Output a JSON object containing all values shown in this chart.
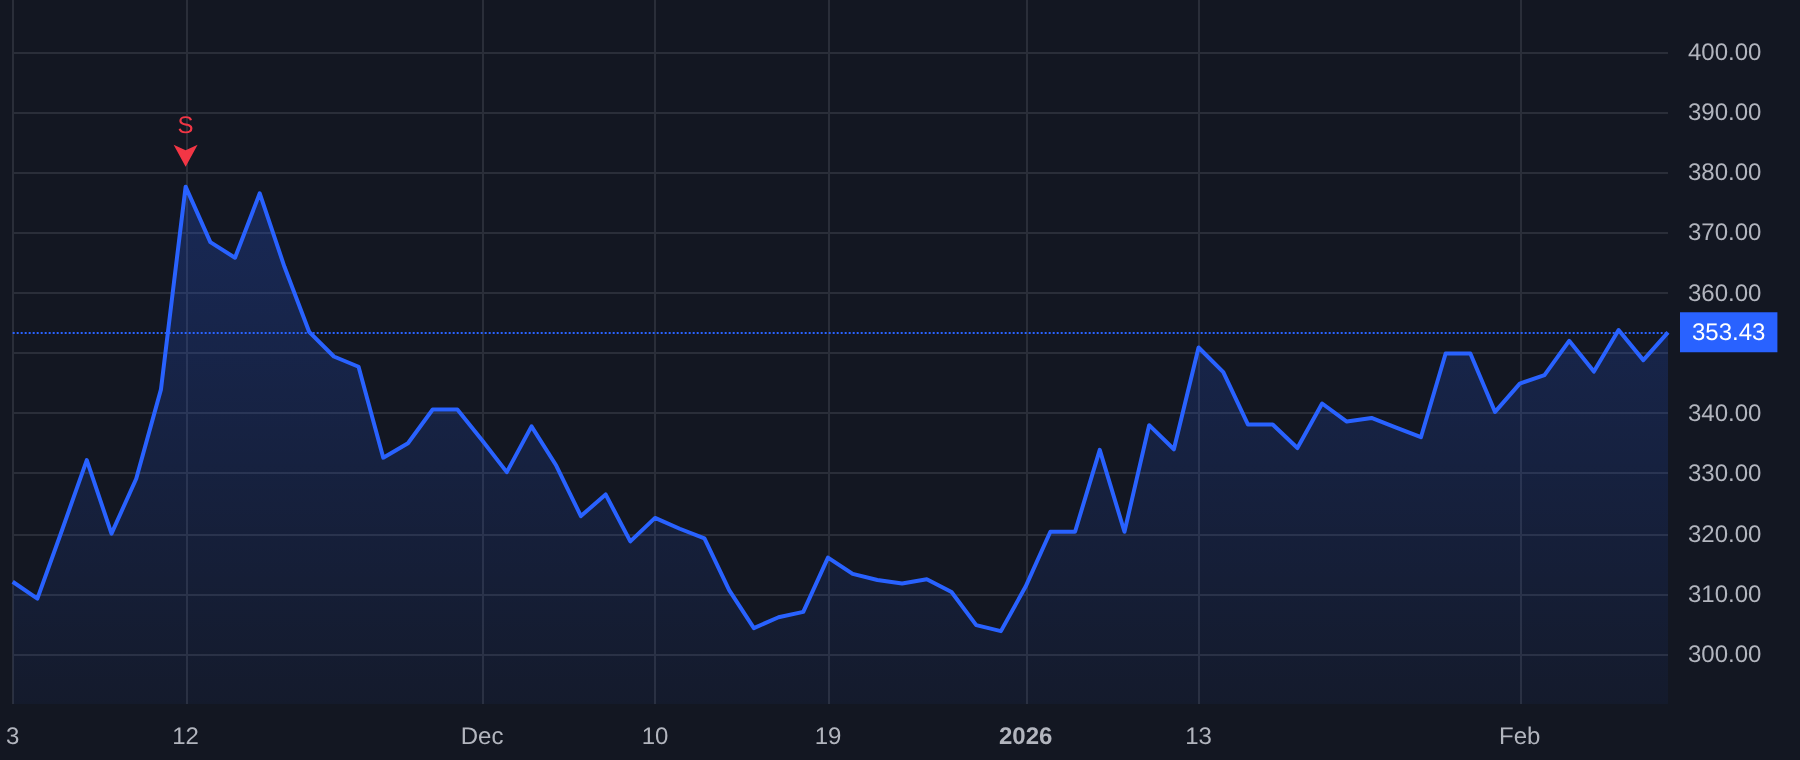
{
  "chart_data": {
    "type": "area",
    "categories": [
      "3",
      null,
      null,
      null,
      null,
      null,
      null,
      "12",
      null,
      null,
      null,
      null,
      null,
      null,
      null,
      null,
      null,
      null,
      null,
      "Dec",
      null,
      null,
      null,
      null,
      null,
      null,
      "10",
      null,
      null,
      null,
      null,
      null,
      null,
      "19",
      null,
      null,
      null,
      null,
      null,
      null,
      null,
      "2026",
      null,
      null,
      null,
      null,
      null,
      null,
      "13",
      null,
      null,
      null,
      null,
      null,
      null,
      null,
      null,
      null,
      null,
      null,
      null,
      "Feb",
      null,
      null,
      null,
      null,
      null,
      null
    ],
    "series": [
      {
        "color": "#2962ff",
        "values": [
          312.0,
          309.2,
          320.6,
          332.2,
          320.0,
          329.1,
          343.9,
          377.6,
          368.4,
          365.8,
          376.5,
          364.3,
          353.5,
          349.4,
          347.7,
          332.6,
          335.0,
          340.6,
          340.6,
          335.5,
          330.2,
          337.8,
          331.3,
          322.9,
          326.5,
          318.7,
          322.6,
          320.8,
          319.2,
          310.6,
          304.3,
          306.1,
          307.0,
          316.0,
          313.3,
          312.3,
          311.7,
          312.4,
          310.3,
          304.8,
          303.8,
          311.2,
          320.3,
          320.3,
          333.9,
          320.3,
          338.0,
          334.0,
          350.9,
          346.8,
          338.1,
          338.1,
          334.2,
          341.6,
          338.6,
          339.2,
          337.6,
          336.0,
          349.9,
          349.9,
          340.2,
          344.9,
          346.3,
          352.0,
          346.9,
          353.8,
          348.8,
          353.4
        ]
      }
    ],
    "ylim": [
      291.7,
      408.6
    ],
    "yticks": [
      {
        "value": 300,
        "label": "300.00"
      },
      {
        "value": 310,
        "label": "310.00"
      },
      {
        "value": 320,
        "label": "320.00"
      },
      {
        "value": 330,
        "label": "330.00"
      },
      {
        "value": 340,
        "label": "340.00"
      },
      {
        "value": 350,
        "label": null
      },
      {
        "value": 360,
        "label": "360.00"
      },
      {
        "value": 370,
        "label": "370.00"
      },
      {
        "value": 380,
        "label": "380.00"
      },
      {
        "value": 390,
        "label": "390.00"
      },
      {
        "value": 400,
        "label": "400.00"
      }
    ],
    "grid": true,
    "marker": "none",
    "line_style": "solid",
    "ref_lines": [
      {
        "axis": "y",
        "value": 353.43,
        "label": "353.43",
        "color": "#2962ff",
        "line_style": "dotted"
      }
    ],
    "annotations": [
      {
        "text": "S",
        "x": "12",
        "y": 377.6
      }
    ]
  }
}
